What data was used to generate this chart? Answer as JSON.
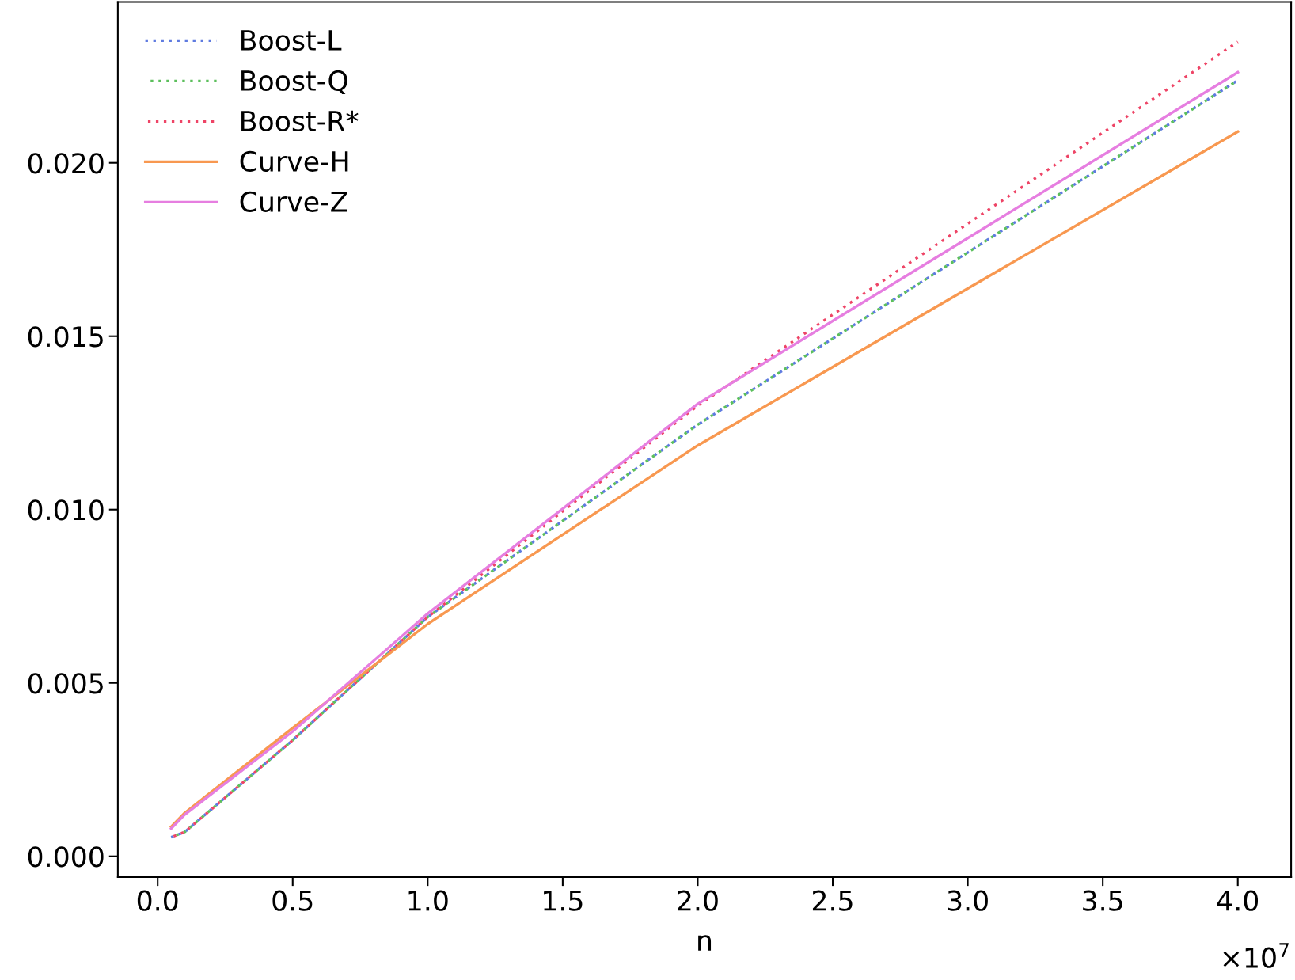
{
  "chart_data": {
    "type": "line",
    "xlabel": "n",
    "annotations": [
      "×10$^{7}$"
    ],
    "x": [
      0.05,
      0.1,
      0.5,
      1.0,
      2.0,
      4.0
    ],
    "series": [
      {
        "name": "Boost-L",
        "color": "#5f7be0",
        "line_style": "dashed",
        "values": [
          0.00055,
          0.0007,
          0.00335,
          0.0069,
          0.01245,
          0.02238
        ]
      },
      {
        "name": "Boost-Q",
        "color": "#5cbf5c",
        "line_style": "dashed",
        "values": [
          0.00055,
          0.0007,
          0.00335,
          0.0069,
          0.01245,
          0.02238
        ]
      },
      {
        "name": "Boost-R*",
        "color": "#ee4466",
        "line_style": "dashed",
        "values": [
          0.00055,
          0.0007,
          0.00335,
          0.0069,
          0.013,
          0.02349
        ]
      },
      {
        "name": "Curve-H",
        "color": "#f89850",
        "line_style": "solid",
        "values": [
          0.00085,
          0.00125,
          0.0037,
          0.0067,
          0.01185,
          0.0209
        ]
      },
      {
        "name": "Curve-Z",
        "color": "#e67ee0",
        "line_style": "solid",
        "values": [
          0.0008,
          0.0012,
          0.0036,
          0.007,
          0.01305,
          0.02261
        ]
      }
    ],
    "xlim": [
      -0.1475,
      4.1975
    ],
    "xticks": [
      {
        "value": 0,
        "label": "0.0"
      },
      0.5,
      {
        "value": 1,
        "label": "1.0"
      },
      1.5,
      {
        "value": 2,
        "label": "2.0"
      },
      2.5,
      {
        "value": 3,
        "label": "3.0"
      },
      3.5,
      {
        "value": 4,
        "label": "4.0"
      }
    ],
    "ylim": [
      -0.0006,
      0.02464
    ],
    "yticks": [
      {
        "value": 0,
        "label": "0.000"
      },
      {
        "value": 0.005,
        "label": "0.005"
      },
      {
        "value": 0.01,
        "label": "0.010"
      },
      {
        "value": 0.015,
        "label": "0.015"
      },
      {
        "value": 0.02,
        "label": "0.020"
      }
    ],
    "grid": false,
    "legend": "top left",
    "marker": "none"
  }
}
